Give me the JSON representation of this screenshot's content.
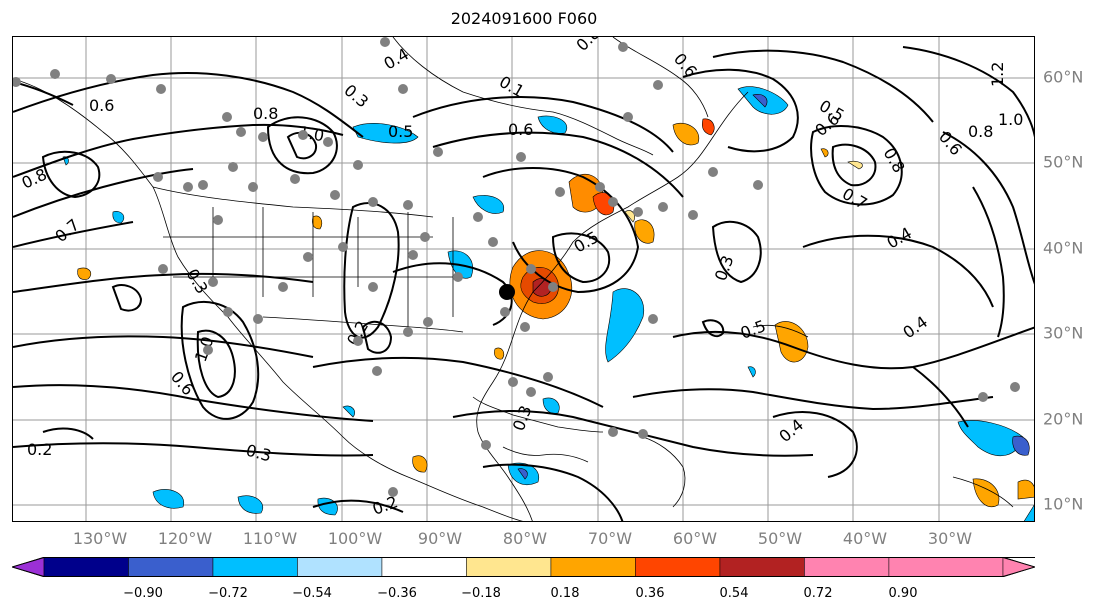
{
  "title": "2024091600 F060",
  "lat_labels": [
    "60°N",
    "50°N",
    "40°N",
    "30°N",
    "20°N",
    "10°N"
  ],
  "lon_labels": [
    "130°W",
    "120°W",
    "110°W",
    "100°W",
    "90°W",
    "80°W",
    "70°W",
    "60°W",
    "50°W",
    "40°W",
    "30°W"
  ],
  "colorbar": {
    "ticks": [
      "−0.90",
      "−0.72",
      "−0.54",
      "−0.36",
      "−0.18",
      "0.18",
      "0.36",
      "0.54",
      "0.72",
      "0.90"
    ],
    "colors": [
      "#9b30d6",
      "#00008b",
      "#3a5fcd",
      "#00bfff",
      "#b0e2ff",
      "#ffffff",
      "#ffe68f",
      "#ffa500",
      "#ff4500",
      "#b22222",
      "#ff83b0",
      "#ff83b0"
    ]
  },
  "contour_labels": [
    "0.6",
    "0.8",
    "0.7",
    "0.4",
    "0.3",
    "0.8",
    "1.0",
    "0.6",
    "0.5",
    "0.1",
    "0.6",
    "0.8",
    "0.5",
    "0.6",
    "0.7",
    "0.8",
    "1.2",
    "1.0",
    "0.8",
    "0.6",
    "0.4",
    "0.3",
    "0.5",
    "0.4",
    "0.4",
    "0.3",
    "0.2",
    "0.3",
    "0.6",
    "1.0",
    "0.2",
    "0.3",
    "0.2",
    "0.5"
  ]
}
